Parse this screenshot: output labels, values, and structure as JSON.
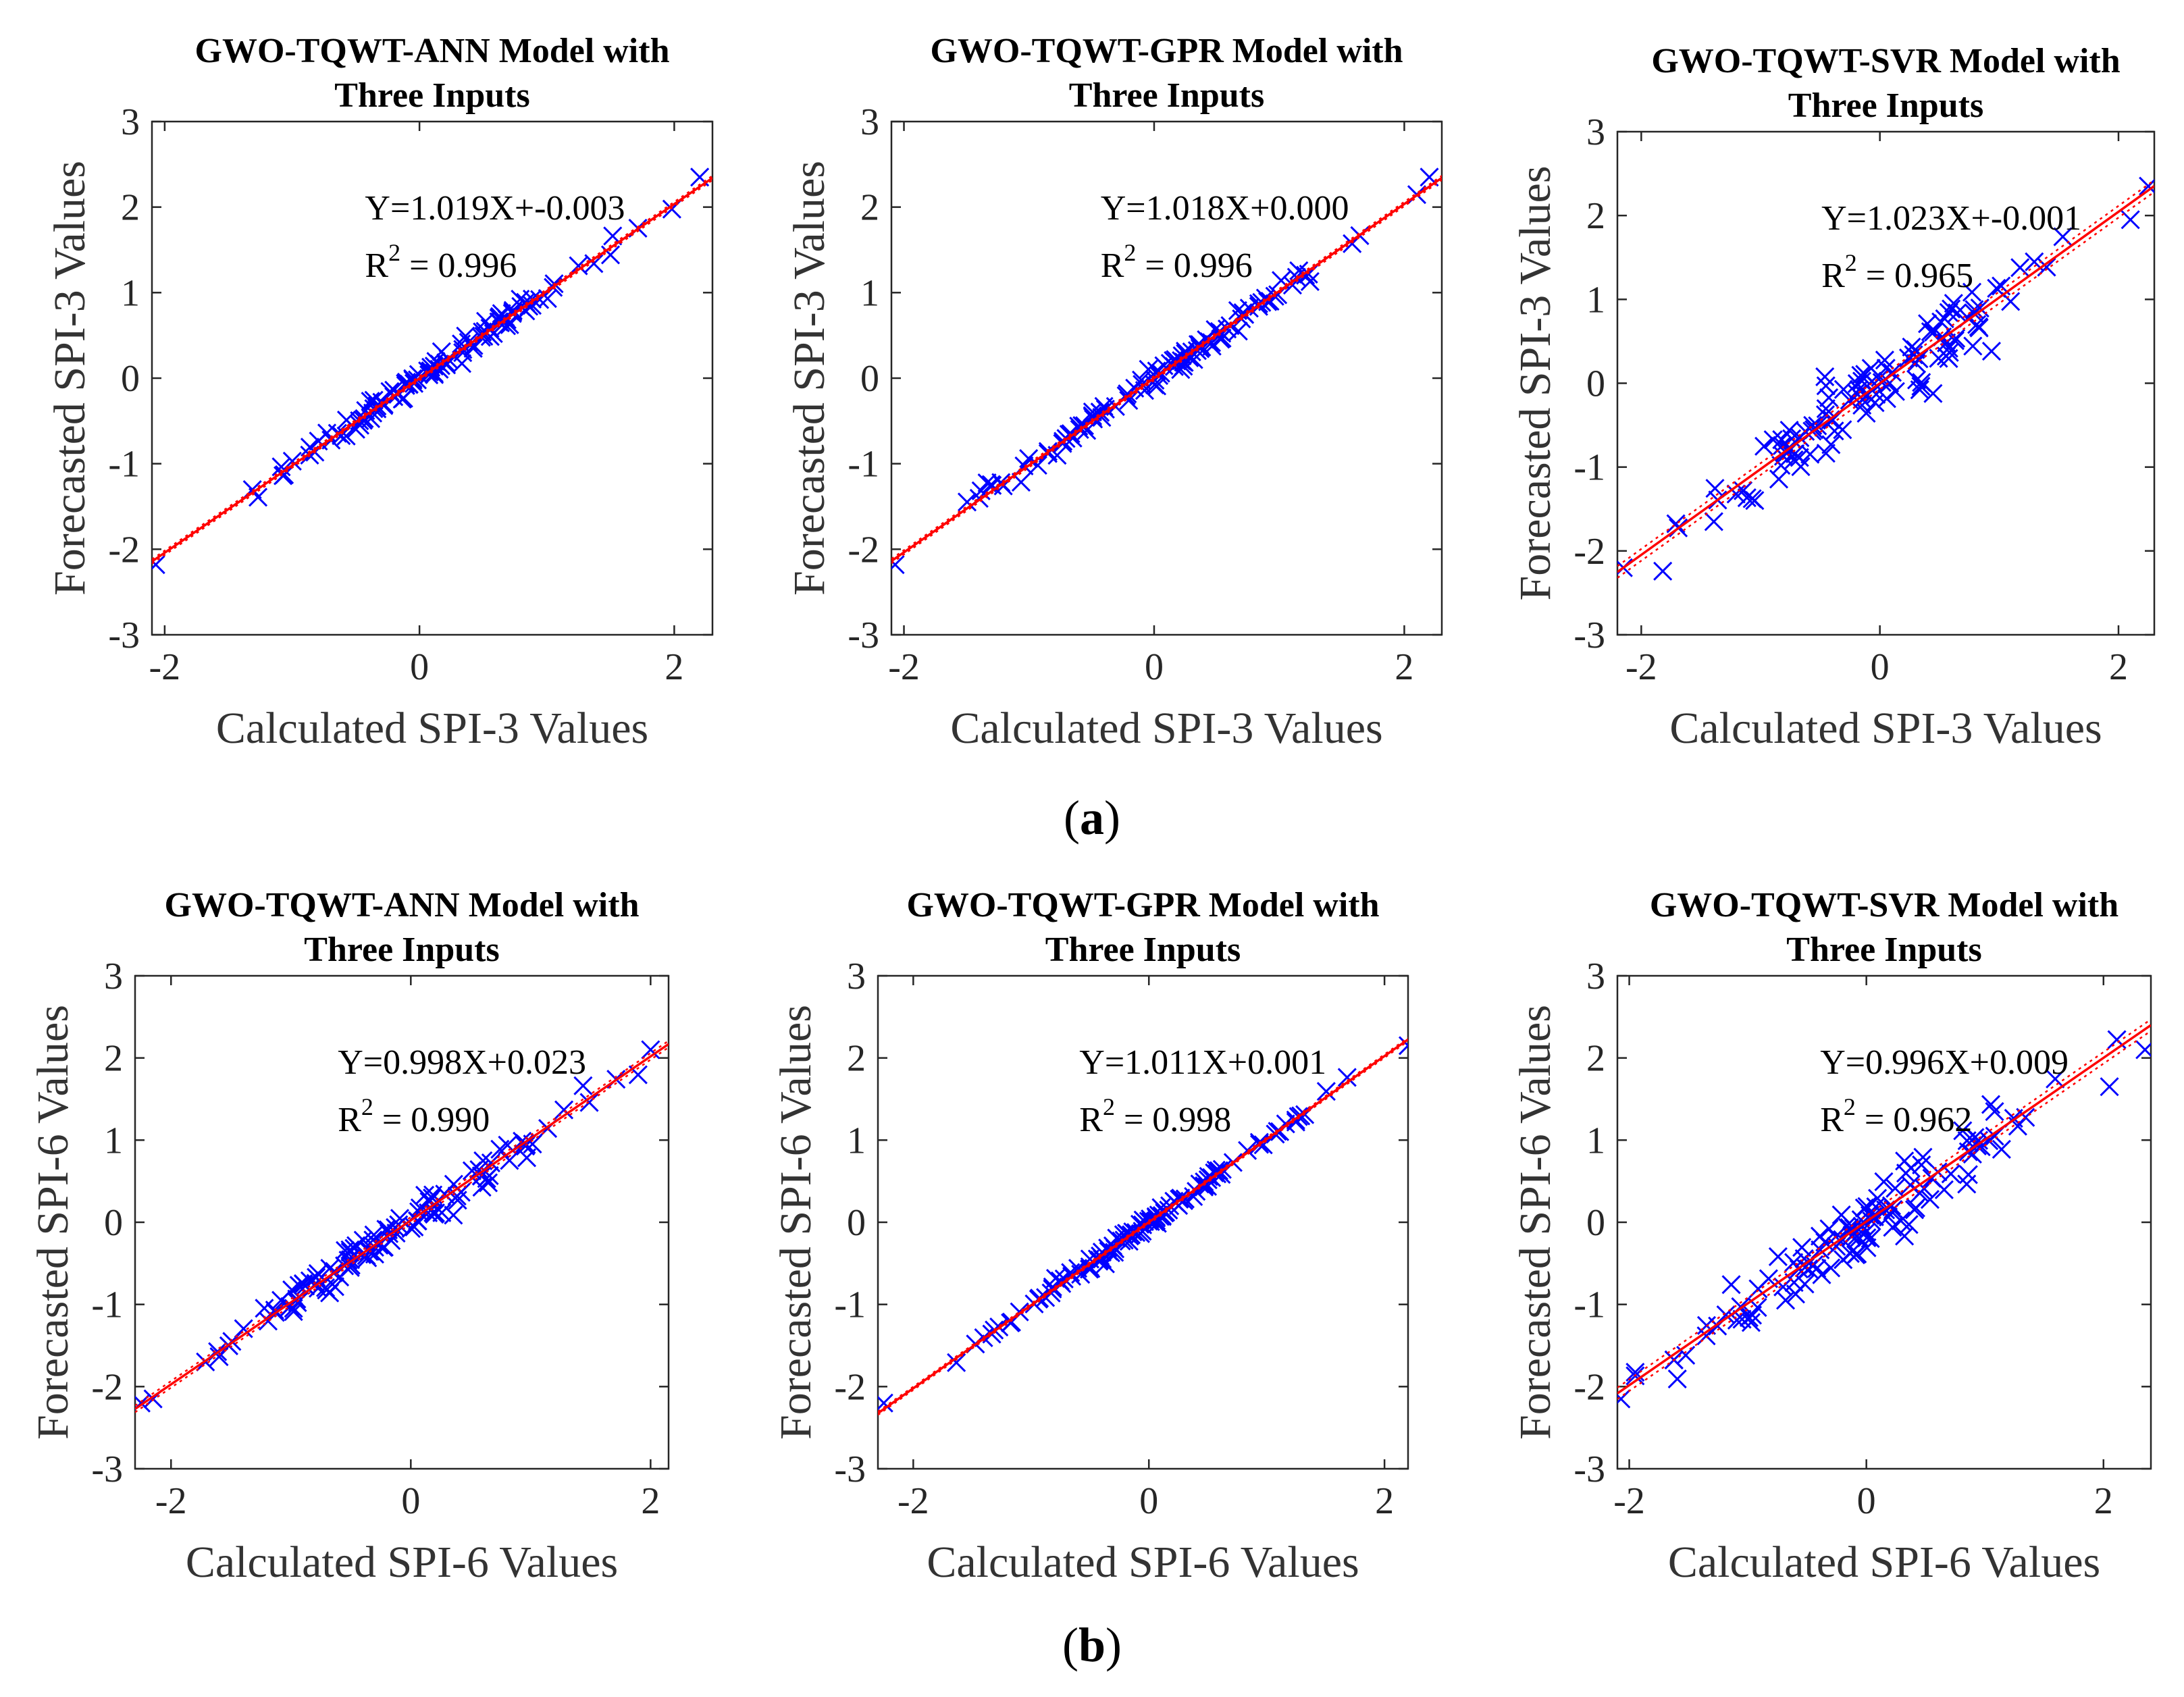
{
  "figure_labels": {
    "a_open": "(",
    "a_letter": "a",
    "a_close": ")",
    "b_open": "(",
    "b_letter": "b",
    "b_close": ")"
  },
  "colors": {
    "marker": "#0000ff",
    "fit": "#ff0000",
    "axis": "#262626"
  },
  "chart_data": [
    {
      "type": "scatter",
      "panel": "a-1",
      "title_line1": "GWO-TQWT-ANN Model with",
      "title_line2": "Three Inputs",
      "xlabel": "Calculated SPI-3 Values",
      "ylabel": "Forecasted SPI-3 Values",
      "xlim": [
        -2.1,
        2.3
      ],
      "ylim": [
        -3,
        3
      ],
      "xticks": [
        "-2",
        "0",
        "2"
      ],
      "yticks": [
        "-3",
        "-2",
        "-1",
        "0",
        "1",
        "2",
        "3"
      ],
      "xtick_values": [
        -2,
        0,
        2
      ],
      "ytick_values": [
        -3,
        -2,
        -1,
        0,
        1,
        2,
        3
      ],
      "fit_equation": "Y=1.019X+-0.003",
      "r2_prefix": "R",
      "r2_sup": "2",
      "r2_value": " = 0.996",
      "slope": 1.019,
      "intercept": -0.003,
      "noise": 0.06,
      "n_points": 110,
      "extreme_points": [
        [
          -2.07,
          -2.18
        ],
        [
          2.2,
          2.35
        ]
      ],
      "ci": 0.025
    },
    {
      "type": "scatter",
      "panel": "a-2",
      "title_line1": "GWO-TQWT-GPR Model with",
      "title_line2": "Three Inputs",
      "xlabel": "Calculated SPI-3 Values",
      "ylabel": "Forecasted SPI-3 Values",
      "xlim": [
        -2.1,
        2.3
      ],
      "ylim": [
        -3,
        3
      ],
      "xticks": [
        "-2",
        "0",
        "2"
      ],
      "yticks": [
        "-3",
        "-2",
        "-1",
        "0",
        "1",
        "2",
        "3"
      ],
      "xtick_values": [
        -2,
        0,
        2
      ],
      "ytick_values": [
        -3,
        -2,
        -1,
        0,
        1,
        2,
        3
      ],
      "fit_equation": "Y=1.018X+0.000",
      "r2_prefix": "R",
      "r2_sup": "2",
      "r2_value": " = 0.996",
      "slope": 1.018,
      "intercept": 0.0,
      "noise": 0.06,
      "n_points": 110,
      "extreme_points": [
        [
          -2.07,
          -2.18
        ],
        [
          2.2,
          2.35
        ]
      ],
      "ci": 0.025
    },
    {
      "type": "scatter",
      "panel": "a-3",
      "title_line1": "GWO-TQWT-SVR Model with",
      "title_line2": "Three Inputs",
      "xlabel": "Calculated SPI-3 Values",
      "ylabel": "Forecasted SPI-3 Values",
      "xlim": [
        -2.2,
        2.3
      ],
      "ylim": [
        -3,
        3
      ],
      "xticks": [
        "-2",
        "0",
        "2"
      ],
      "yticks": [
        "-3",
        "-2",
        "-1",
        "0",
        "1",
        "2",
        "3"
      ],
      "xtick_values": [
        -2,
        0,
        2
      ],
      "ytick_values": [
        -3,
        -2,
        -1,
        0,
        1,
        2,
        3
      ],
      "fit_equation": "Y=1.023X+-0.001",
      "r2_prefix": "R",
      "r2_sup": "2",
      "r2_value": " = 0.965",
      "slope": 1.023,
      "intercept": -0.001,
      "noise": 0.19,
      "n_points": 115,
      "extreme_points": [
        [
          -2.15,
          -2.2
        ],
        [
          2.25,
          2.35
        ],
        [
          2.1,
          1.95
        ]
      ],
      "ci": 0.07
    },
    {
      "type": "scatter",
      "panel": "b-1",
      "title_line1": "GWO-TQWT-ANN Model with",
      "title_line2": "Three Inputs",
      "xlabel": "Calculated SPI-6 Values",
      "ylabel": "Forecasted SPI-6 Values",
      "xlim": [
        -2.3,
        2.15
      ],
      "ylim": [
        -3,
        3
      ],
      "xticks": [
        "-2",
        "0",
        "2"
      ],
      "yticks": [
        "-3",
        "-2",
        "-1",
        "0",
        "1",
        "2",
        "3"
      ],
      "xtick_values": [
        -2,
        0,
        2
      ],
      "ytick_values": [
        -3,
        -2,
        -1,
        0,
        1,
        2,
        3
      ],
      "fit_equation": "Y=0.998X+0.023",
      "r2_prefix": "R",
      "r2_sup": "2",
      "r2_value": " = 0.990",
      "slope": 0.998,
      "intercept": 0.023,
      "noise": 0.1,
      "n_points": 115,
      "extreme_points": [
        [
          -2.25,
          -2.2
        ],
        [
          2.0,
          2.1
        ]
      ],
      "ci": 0.04
    },
    {
      "type": "scatter",
      "panel": "b-2",
      "title_line1": "GWO-TQWT-GPR Model with",
      "title_line2": "Three Inputs",
      "xlabel": "Calculated SPI-6 Values",
      "ylabel": "Forecasted SPI-6 Values",
      "xlim": [
        -2.3,
        2.2
      ],
      "ylim": [
        -3,
        3
      ],
      "xticks": [
        "-2",
        "0",
        "2"
      ],
      "yticks": [
        "-3",
        "-2",
        "-1",
        "0",
        "1",
        "2",
        "3"
      ],
      "xtick_values": [
        -2,
        0,
        2
      ],
      "ytick_values": [
        -3,
        -2,
        -1,
        0,
        1,
        2,
        3
      ],
      "fit_equation": "Y=1.011X+0.001",
      "r2_prefix": "R",
      "r2_sup": "2",
      "r2_value": " = 0.998",
      "slope": 1.011,
      "intercept": 0.001,
      "noise": 0.045,
      "n_points": 115,
      "extreme_points": [
        [
          -2.25,
          -2.2
        ],
        [
          2.2,
          2.15
        ]
      ],
      "ci": 0.02
    },
    {
      "type": "scatter",
      "panel": "b-3",
      "title_line1": "GWO-TQWT-SVR Model with",
      "title_line2": "Three Inputs",
      "xlabel": "Calculated SPI-6 Values",
      "ylabel": "Forecasted SPI-6 Values",
      "xlim": [
        -2.1,
        2.4
      ],
      "ylim": [
        -3,
        3
      ],
      "xticks": [
        "-2",
        "0",
        "2"
      ],
      "yticks": [
        "-3",
        "-2",
        "-1",
        "0",
        "1",
        "2",
        "3"
      ],
      "xtick_values": [
        -2,
        0,
        2
      ],
      "ytick_values": [
        -3,
        -2,
        -1,
        0,
        1,
        2,
        3
      ],
      "fit_equation": "Y=0.996X+0.009",
      "r2_prefix": "R",
      "r2_sup": "2",
      "r2_value": " = 0.962",
      "slope": 0.996,
      "intercept": 0.009,
      "noise": 0.2,
      "n_points": 115,
      "extreme_points": [
        [
          -2.07,
          -2.15
        ],
        [
          2.35,
          2.1
        ],
        [
          2.05,
          1.65
        ]
      ],
      "ci": 0.07
    }
  ]
}
